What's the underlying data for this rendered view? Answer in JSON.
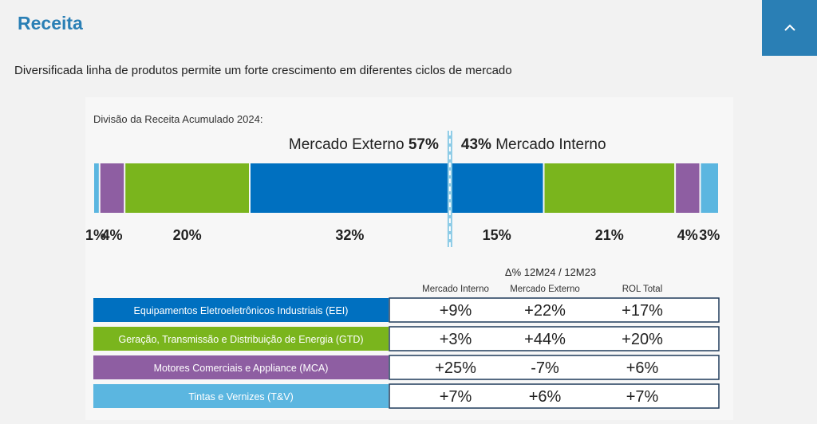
{
  "page": {
    "title": "Receita",
    "subtitle": "Diversificada linha de produtos permite um forte crescimento em diferentes ciclos de mercado",
    "collapse_icon": "chevron-up-icon"
  },
  "colors": {
    "accent": "#2a7fb5",
    "eei": "#0070c0",
    "gtd": "#7ab51d",
    "mca": "#8e5ea2",
    "tv": "#5bb6e0"
  },
  "chart_data": [
    {
      "type": "bar",
      "title": "Divisão da Receita Acumulado 2024:",
      "groups": [
        {
          "label": "Mercado Externo",
          "value": "57%"
        },
        {
          "label": "Mercado Interno",
          "value": "43%"
        }
      ],
      "segments": [
        {
          "value": 1,
          "label": "1%",
          "color": "#5bb6e0"
        },
        {
          "value": 4,
          "label": "4%",
          "color": "#8e5ea2"
        },
        {
          "value": 20,
          "label": "20%",
          "color": "#7ab51d"
        },
        {
          "value": 32,
          "label": "32%",
          "color": "#0070c0"
        },
        {
          "value": 15,
          "label": "15%",
          "color": "#0070c0"
        },
        {
          "value": 21,
          "label": "21%",
          "color": "#7ab51d"
        },
        {
          "value": 4,
          "label": "4%",
          "color": "#8e5ea2"
        },
        {
          "value": 3,
          "label": "3%",
          "color": "#5bb6e0"
        }
      ]
    },
    {
      "type": "table",
      "title": "Δ% 12M24 / 12M23",
      "columns": [
        "Mercado Interno",
        "Mercado Externo",
        "ROL Total"
      ],
      "rows": [
        {
          "label": "Equipamentos Eletroeletrônicos Industriais (EEI)",
          "color": "#0070c0",
          "values": [
            "+9%",
            "+22%",
            "+17%"
          ]
        },
        {
          "label": "Geração, Transmissão e Distribuição  de Energia (GTD)",
          "color": "#7ab51d",
          "values": [
            "+3%",
            "+44%",
            "+20%"
          ]
        },
        {
          "label": "Motores Comerciais e Appliance (MCA)",
          "color": "#8e5ea2",
          "values": [
            "+25%",
            "-7%",
            "+6%"
          ]
        },
        {
          "label": "Tintas e Vernizes (T&V)",
          "color": "#5bb6e0",
          "values": [
            "+7%",
            "+6%",
            "+7%"
          ]
        }
      ]
    }
  ]
}
